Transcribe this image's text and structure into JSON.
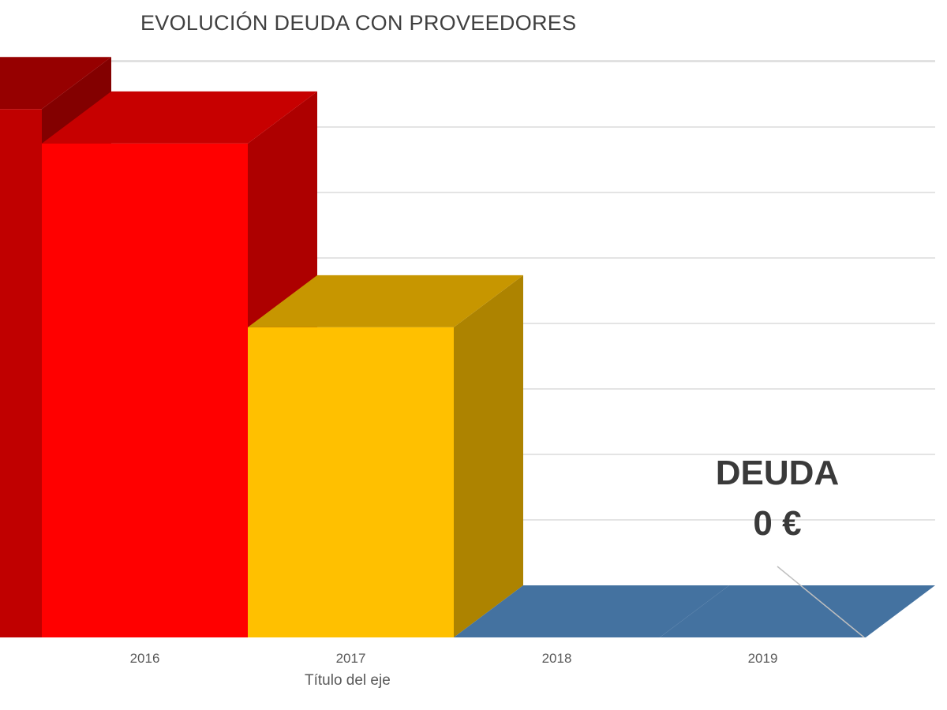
{
  "chart_data": {
    "type": "bar",
    "title": "EVOLUCIÓN DEUDA CON PROVEEDORES",
    "xlabel": "Título del eje",
    "ylabel": "",
    "categories": [
      "",
      "2016",
      "2017",
      "2018",
      "2019"
    ],
    "values": [
      92,
      86,
      54,
      0,
      0
    ],
    "colors": [
      "#c00000",
      "#ff0000",
      "#ffc000",
      "#4472a0",
      "#4472a0"
    ],
    "ylim": [
      0,
      100
    ],
    "grid": true,
    "three_d": true,
    "annotation": {
      "line1": "DEUDA",
      "line2": "0 €"
    }
  }
}
